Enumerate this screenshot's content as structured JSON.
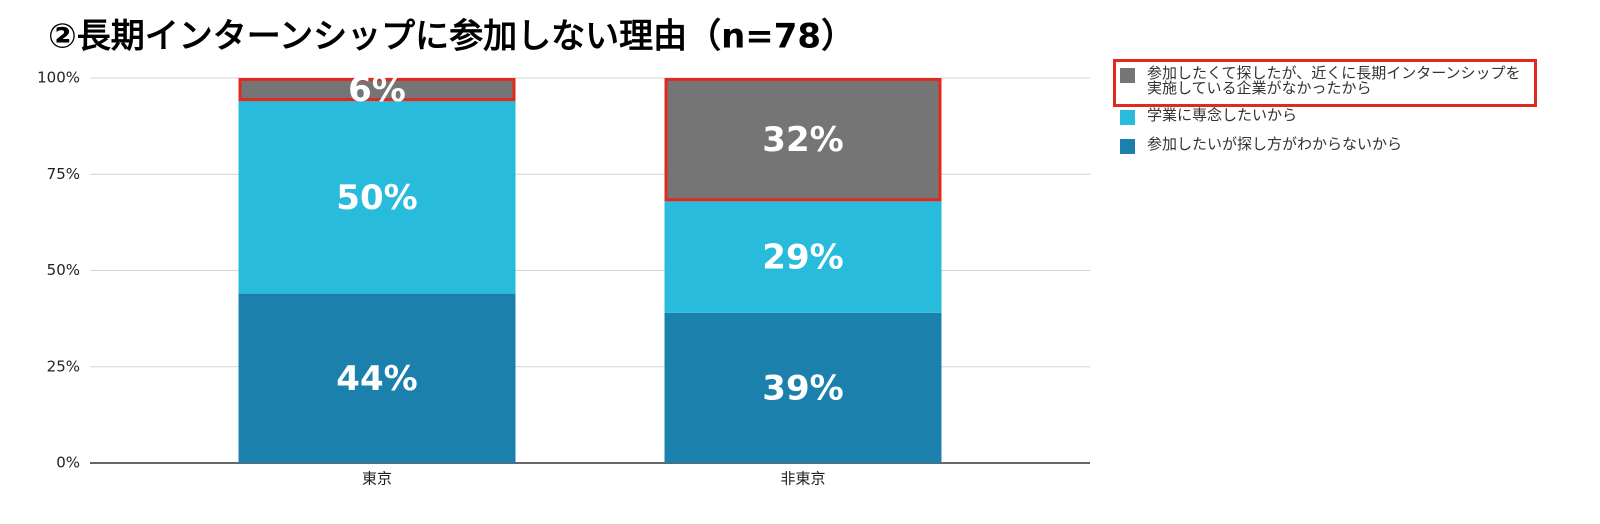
{
  "chart_data": {
    "type": "stacked_bar",
    "title": "②長期インターンシップに参加しない理由（n=78）",
    "categories": [
      "東京",
      "非東京"
    ],
    "series": [
      {
        "name": "参加したいが探し方がわからないから",
        "color": "#1c80ad",
        "values": [
          44,
          39
        ],
        "value_labels": [
          "44%",
          "39%"
        ]
      },
      {
        "name": "学業に専念したいから",
        "color": "#29bbdb",
        "values": [
          50,
          29
        ],
        "value_labels": [
          "50%",
          "29%"
        ]
      },
      {
        "name": "参加したくて探したが、近くに長期インターンシップを実施している企業がなかったから",
        "color": "#757575",
        "values": [
          6,
          32
        ],
        "value_labels": [
          "6%",
          "32%"
        ]
      }
    ],
    "ylim": [
      0,
      100
    ],
    "yticks": [
      {
        "value": 0,
        "label": "0%"
      },
      {
        "value": 25,
        "label": "25%"
      },
      {
        "value": 50,
        "label": "50%"
      },
      {
        "value": 75,
        "label": "75%"
      },
      {
        "value": 100,
        "label": "100%"
      }
    ],
    "grid": true
  }
}
